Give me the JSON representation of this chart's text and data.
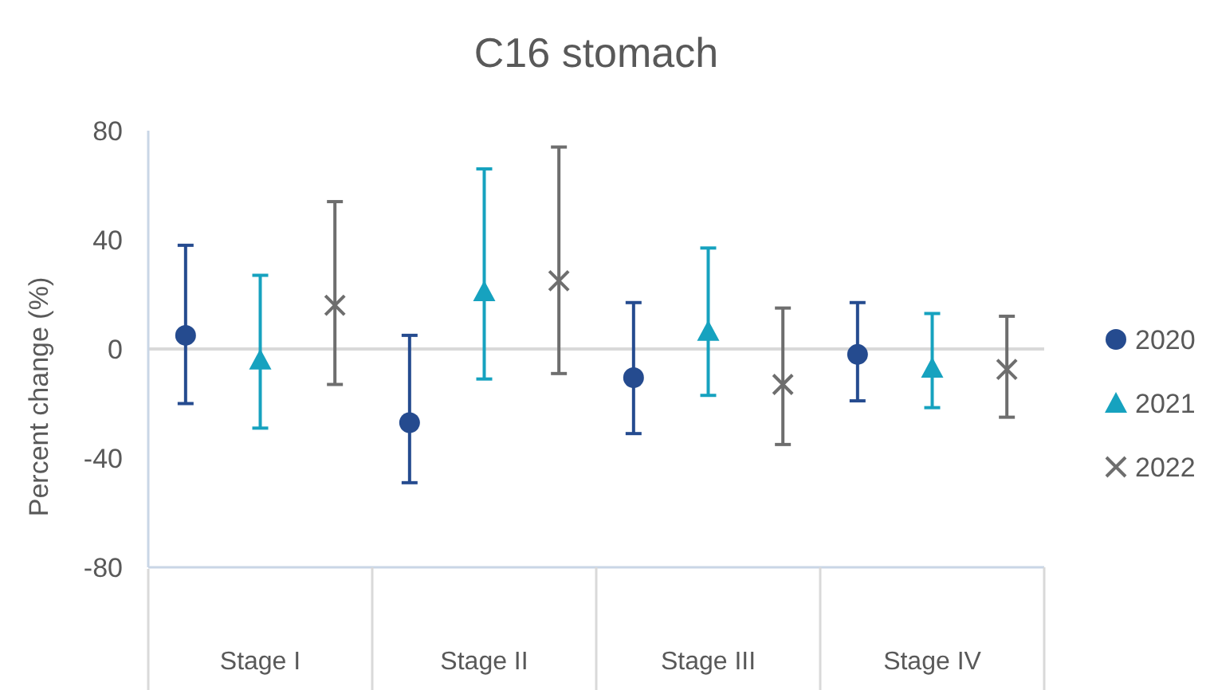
{
  "chart_data": {
    "type": "scatter",
    "title": "C16 stomach",
    "ylabel": "Percent change (%)",
    "categories": [
      "Stage I",
      "Stage II",
      "Stage III",
      "Stage IV"
    ],
    "series": [
      {
        "name": "2020",
        "color": "#254b8f",
        "marker": "circle",
        "values": [
          5,
          -27,
          -10.5,
          -2
        ],
        "errors": [
          [
            -20,
            38
          ],
          [
            -49,
            5
          ],
          [
            -31,
            17
          ],
          [
            -19,
            17
          ]
        ]
      },
      {
        "name": "2021",
        "color": "#16a2bf",
        "marker": "triangle",
        "values": [
          -4,
          21,
          6.5,
          -7
        ],
        "errors": [
          [
            -29,
            27
          ],
          [
            -11,
            66
          ],
          [
            -17,
            37
          ],
          [
            -21.5,
            13
          ]
        ]
      },
      {
        "name": "2022",
        "color": "#6e6e6e",
        "marker": "cross",
        "values": [
          16,
          25,
          -13,
          -7.5
        ],
        "errors": [
          [
            -13,
            54
          ],
          [
            -9,
            74
          ],
          [
            -35,
            15
          ],
          [
            -25,
            12
          ]
        ]
      }
    ],
    "ylim": [
      -80,
      80
    ],
    "yticks": [
      -80,
      -40,
      0,
      40,
      80
    ],
    "ref_lines": [
      {
        "axis": "y",
        "value": 0,
        "color": "#d9d9d9"
      }
    ],
    "grid": false,
    "legend": "right"
  }
}
